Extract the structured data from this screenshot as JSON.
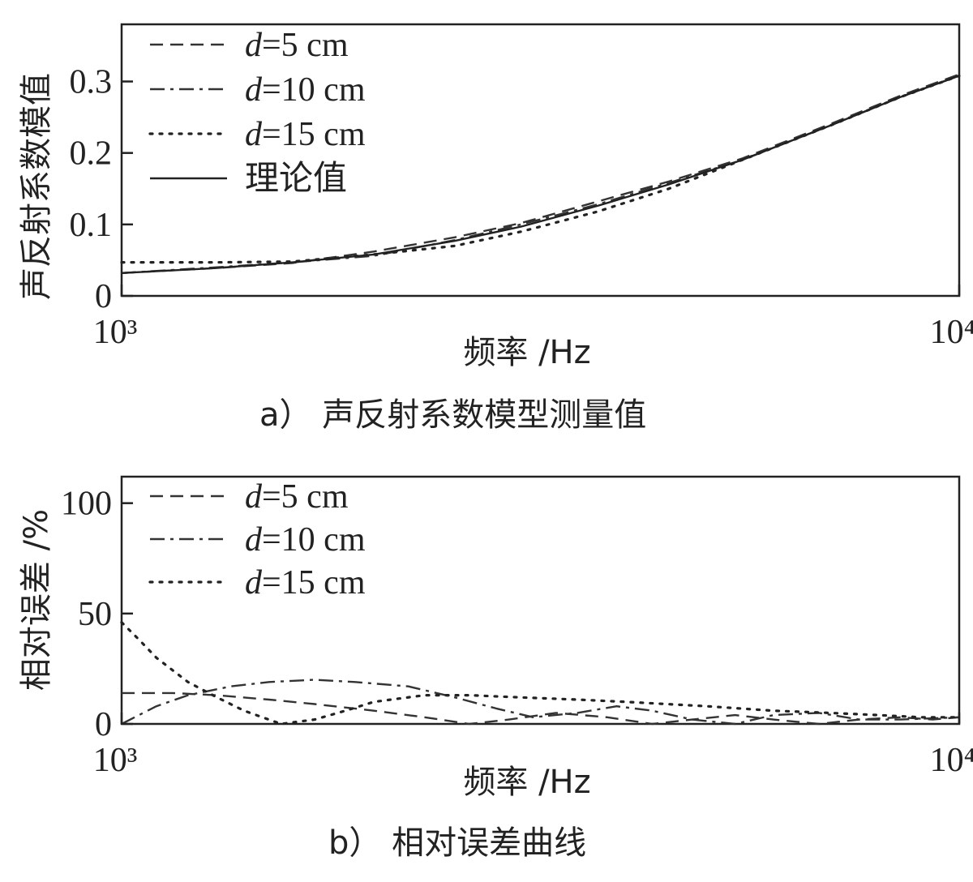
{
  "chart_data": [
    {
      "type": "line",
      "title": "",
      "caption": "a） 声反射系数模型测量值",
      "xlabel": "频率 /Hz",
      "ylabel": "声反射系数模值",
      "x_scale": "log",
      "xlim": [
        1000,
        10000
      ],
      "ylim": [
        0,
        0.38
      ],
      "x_ticks": [
        {
          "value": 1000,
          "label": "10³"
        },
        {
          "value": 10000,
          "label": "10⁴"
        }
      ],
      "y_ticks": [
        {
          "value": 0,
          "label": "0"
        },
        {
          "value": 0.1,
          "label": "0.1"
        },
        {
          "value": 0.2,
          "label": "0.2"
        },
        {
          "value": 0.3,
          "label": "0.3"
        }
      ],
      "legend_position": "top-left",
      "series": [
        {
          "name": "d=5 cm",
          "style": "dashed",
          "x": [
            1000,
            1300,
            1600,
            2000,
            2500,
            3000,
            3700,
            4500,
            5500,
            7000,
            8500,
            10000
          ],
          "y": [
            0.032,
            0.039,
            0.046,
            0.062,
            0.082,
            0.102,
            0.132,
            0.16,
            0.192,
            0.24,
            0.28,
            0.31
          ]
        },
        {
          "name": "d=10 cm",
          "style": "dashdot",
          "x": [
            1000,
            1300,
            1600,
            2000,
            2500,
            3000,
            3700,
            4500,
            5500,
            7000,
            8500,
            10000
          ],
          "y": [
            0.032,
            0.04,
            0.047,
            0.056,
            0.078,
            0.1,
            0.128,
            0.158,
            0.19,
            0.238,
            0.278,
            0.308
          ]
        },
        {
          "name": "d=15 cm",
          "style": "dotted",
          "x": [
            1000,
            1300,
            1600,
            2000,
            2500,
            3000,
            3700,
            4500,
            5500,
            7000,
            8500,
            10000
          ],
          "y": [
            0.047,
            0.047,
            0.048,
            0.058,
            0.07,
            0.09,
            0.118,
            0.15,
            0.19,
            0.238,
            0.278,
            0.308
          ]
        },
        {
          "name": "理论值",
          "style": "solid",
          "x": [
            1000,
            1300,
            1600,
            2000,
            2500,
            3000,
            3700,
            4500,
            5500,
            7000,
            8500,
            10000
          ],
          "y": [
            0.032,
            0.039,
            0.047,
            0.058,
            0.077,
            0.097,
            0.126,
            0.156,
            0.19,
            0.238,
            0.278,
            0.308
          ]
        }
      ]
    },
    {
      "type": "line",
      "title": "",
      "caption": "b） 相对误差曲线",
      "xlabel": "频率 /Hz",
      "ylabel": "相对误差 /%",
      "x_scale": "log",
      "xlim": [
        1000,
        10000
      ],
      "ylim": [
        0,
        112
      ],
      "x_ticks": [
        {
          "value": 1000,
          "label": "10³"
        },
        {
          "value": 10000,
          "label": "10⁴"
        }
      ],
      "y_ticks": [
        {
          "value": 0,
          "label": "0"
        },
        {
          "value": 50,
          "label": "50"
        },
        {
          "value": 100,
          "label": "100"
        }
      ],
      "legend_position": "top-left",
      "series": [
        {
          "name": "d=5 cm",
          "style": "dashed",
          "x": [
            1000,
            1150,
            1300,
            1500,
            1700,
            2000,
            2300,
            2600,
            2900,
            3300,
            3800,
            4300,
            4800,
            5400,
            6000,
            6800,
            7600,
            8500,
            9300,
            10000
          ],
          "y": [
            14,
            14,
            13,
            11,
            9,
            6,
            3,
            0,
            2,
            5,
            3,
            0,
            2,
            4,
            2,
            0,
            2,
            3,
            2,
            3
          ]
        },
        {
          "name": "d=10 cm",
          "style": "dashdot",
          "x": [
            1000,
            1100,
            1200,
            1350,
            1500,
            1700,
            1900,
            2200,
            2500,
            2800,
            3100,
            3500,
            3900,
            4300,
            4800,
            5400,
            6000,
            6800,
            7600,
            8500,
            10000
          ],
          "y": [
            0,
            8,
            13,
            17,
            19,
            20,
            19,
            17,
            12,
            7,
            3,
            5,
            8,
            6,
            2,
            0,
            4,
            5,
            2,
            2,
            3
          ]
        },
        {
          "name": "d=15 cm",
          "style": "dotted",
          "x": [
            1000,
            1050,
            1100,
            1200,
            1300,
            1400,
            1550,
            1700,
            1850,
            2000,
            2300,
            2600,
            3000,
            3500,
            4000,
            5000,
            6000,
            7000,
            8000,
            9000,
            10000
          ],
          "y": [
            46,
            38,
            30,
            19,
            12,
            6,
            0,
            2,
            6,
            10,
            13,
            13,
            12,
            11,
            10,
            8,
            6,
            5,
            4,
            3,
            3
          ]
        }
      ]
    }
  ]
}
